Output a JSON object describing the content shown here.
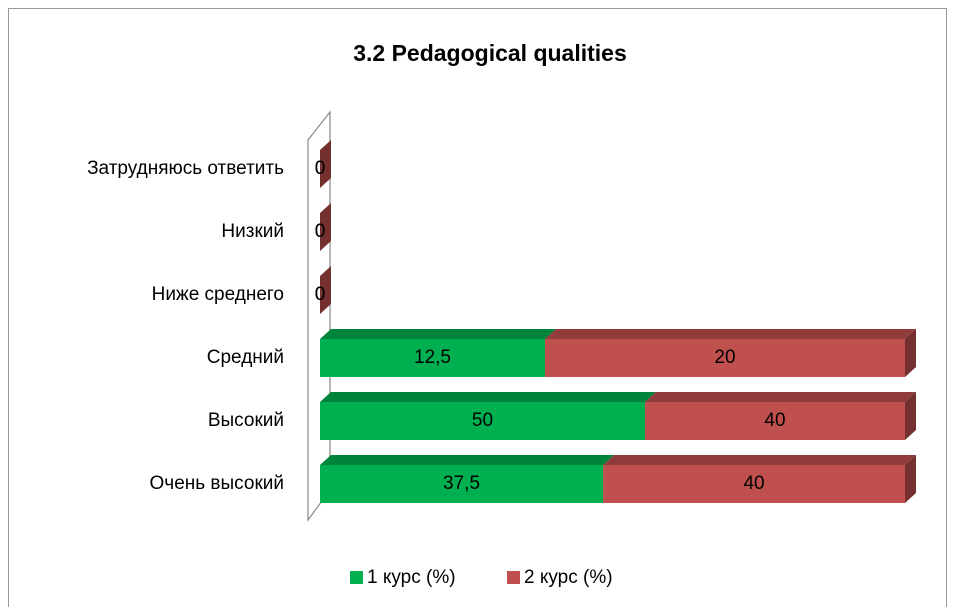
{
  "chart_data": {
    "type": "bar",
    "orientation": "horizontal",
    "stacked": "percent",
    "title": "3.2 Pedagogical qualities",
    "categories": [
      "Очень высокий",
      "Высокий",
      "Средний",
      "Ниже среднего",
      "Низкий",
      "Затрудняюсь ответить"
    ],
    "series": [
      {
        "name": "1 курс (%)",
        "color": "#00b050",
        "values": [
          37.5,
          50,
          12.5,
          0,
          0,
          0
        ],
        "value_labels": [
          "37,5",
          "50",
          "12,5",
          "0",
          "0",
          "0"
        ]
      },
      {
        "name": "2 курс (%)",
        "color": "#c0504d",
        "values": [
          40,
          40,
          20,
          0,
          0,
          0
        ]
      }
    ],
    "legend": "bottom"
  }
}
